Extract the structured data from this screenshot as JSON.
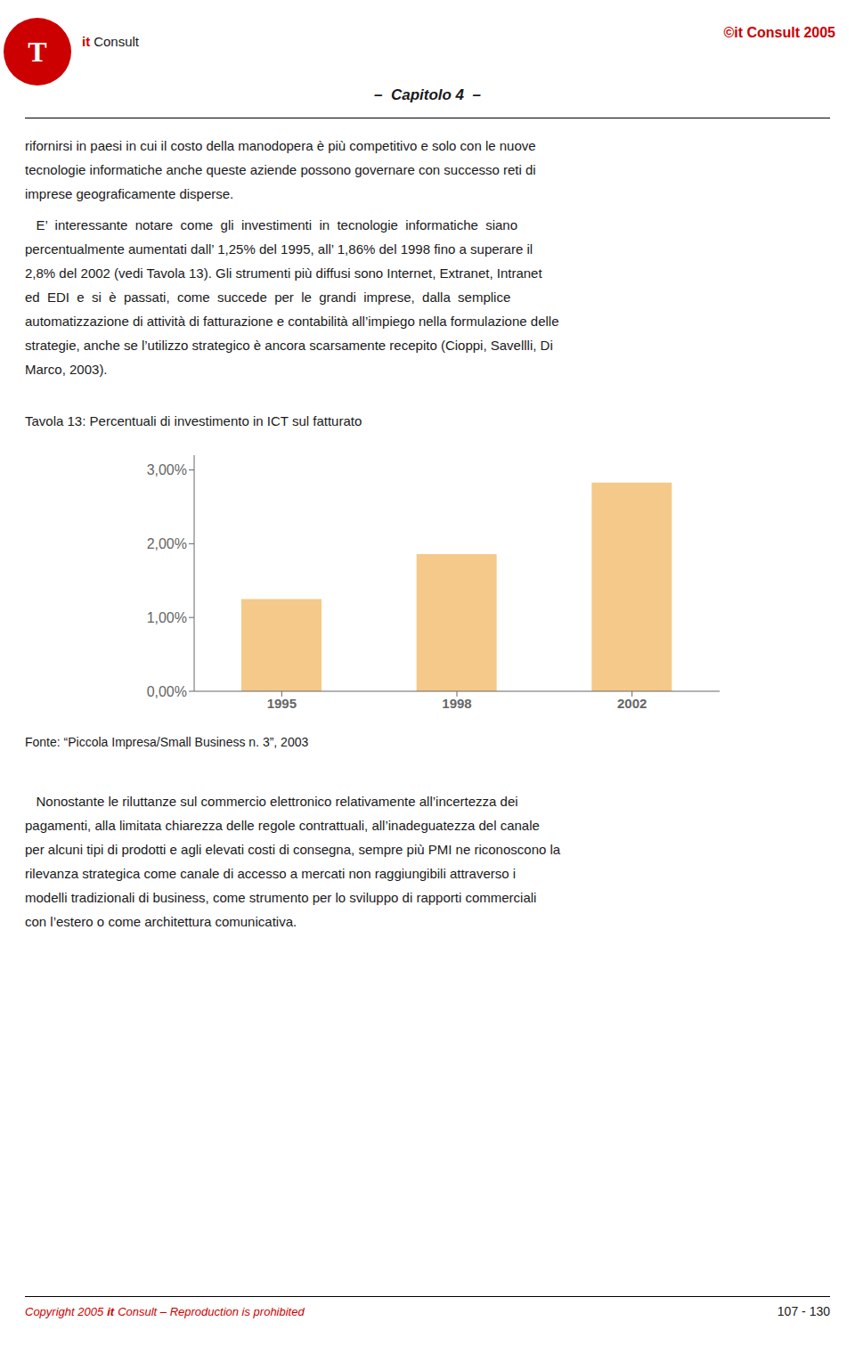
{
  "chart_data": {
    "type": "bar",
    "title": "Tavola 13: Percentuali di investimento in ICT sul fatturato",
    "categories": [
      "1995",
      "1998",
      "2002"
    ],
    "values": [
      1.25,
      1.86,
      2.83
    ],
    "color": "#f5c98a",
    "ylim": [
      0,
      3.2
    ],
    "yticks": [
      {
        "value": 0.0,
        "label": "0,00%"
      },
      {
        "value": 1.0,
        "label": "1,00%"
      },
      {
        "value": 2.0,
        "label": "2,00%"
      },
      {
        "value": 3.0,
        "label": "3,00%"
      }
    ],
    "grid": false,
    "annotations": [
      "T",
      "it",
      "Consult",
      "©it Consult 2005",
      "–  Capitolo 4  –",
      "rifornirsi in paesi in cui il costo della manodopera è più competitivo e solo con le nuove",
      "tecnologie informatiche anche queste aziende possono governare con successo reti di",
      "imprese geograficamente disperse.",
      "   E’  interessante  notare  come  gli  investimenti  in  tecnologie  informatiche  siano",
      "percentualmente aumentati dall’ 1,25% del 1995, all’ 1,86% del 1998 fino a superare il",
      "2,8% del 2002 (vedi Tavola 13). Gli strumenti più diffusi sono Internet, Extranet, Intranet",
      "ed  EDI  e  si  è  passati,  come  succede  per  le  grandi  imprese,  dalla  semplice",
      "automatizzazione di attività di fatturazione e contabilità all’impiego nella formulazione delle",
      "strategie, anche se l’utilizzo strategico è ancora scarsamente recepito (Cioppi, Savellli, Di",
      "Marco, 2003).",
      "Fonte: “Piccola Impresa/Small Business n. 3”, 2003",
      "   Nonostante le riluttanze sul commercio elettronico relativamente all’incertezza dei",
      "pagamenti, alla limitata chiarezza delle regole contrattuali, all’inadeguatezza del canale",
      "per alcuni tipi di prodotti e agli elevati costi di consegna, sempre più PMI ne riconoscono la",
      "rilevanza strategica come canale di accesso a mercati non raggiungibili attraverso i",
      "modelli tradizionali di business, come strumento per lo sviluppo di rapporti commerciali",
      "con l’estero o come architettura comunicativa.",
      "Copyright 2005",
      "it",
      "Consult – Reproduction is prohibited",
      "107 - 130"
    ]
  }
}
